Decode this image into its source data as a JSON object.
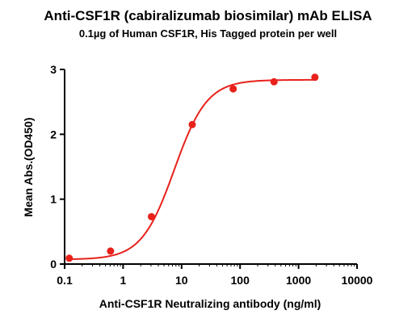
{
  "chart_data": {
    "type": "scatter",
    "title": "Anti-CSF1R (cabiralizumab biosimilar) mAb ELISA",
    "subtitle": "0.1µg of Human CSF1R, His Tagged protein per well",
    "xlabel": "Anti-CSF1R Neutralizing antibody (ng/ml)",
    "ylabel": "Mean Abs.(OD450)",
    "x_scale": "log",
    "xlim": [
      0.1,
      10000
    ],
    "ylim": [
      0,
      3
    ],
    "x_ticks": [
      "0.1",
      "1",
      "10",
      "100",
      "1000",
      "10000"
    ],
    "y_ticks": [
      "0",
      "1",
      "2",
      "3"
    ],
    "grid": false,
    "series": [
      {
        "x": [
          0.12,
          0.61,
          3.05,
          15.2,
          76.2,
          381,
          1905
        ],
        "y": [
          0.09,
          0.2,
          0.73,
          2.15,
          2.7,
          2.81,
          2.88
        ]
      }
    ],
    "fit_curve": {
      "type": "4PL",
      "bottom": 0.07,
      "top": 2.84,
      "ec50": 7.5,
      "hill": 1.55
    },
    "colors": {
      "series": "#e8211b",
      "axis": "#000000"
    }
  }
}
